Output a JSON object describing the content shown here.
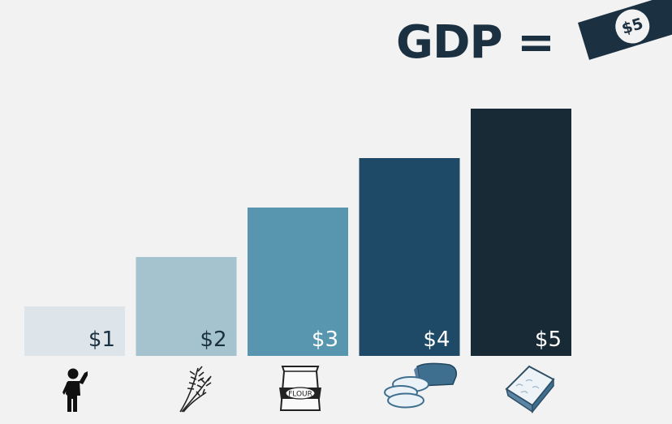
{
  "header": {
    "title": "GDP =",
    "note_value": "$5",
    "note_icon": "banknote-icon"
  },
  "chart_data": {
    "type": "bar",
    "categories": [
      "worker",
      "wheat",
      "flour",
      "bread",
      "sandwich"
    ],
    "values": [
      1,
      2,
      3,
      4,
      5
    ],
    "value_labels": [
      "$1",
      "$2",
      "$3",
      "$4",
      "$5"
    ],
    "ylim": [
      0,
      5
    ],
    "grid": false,
    "legend": "none",
    "colors": [
      "#dde5eb",
      "#a4c3cf",
      "#5896b0",
      "#1e4a68",
      "#172a36"
    ],
    "label_colors": [
      "#1b3040",
      "#1b3040",
      "#ffffff",
      "#ffffff",
      "#ffffff"
    ],
    "icons": [
      "person-waving-icon",
      "wheat-icon",
      "flour-bag-icon",
      "sliced-bread-icon",
      "sandwich-icon"
    ],
    "icon_text": {
      "flour": "FLOUR"
    }
  }
}
